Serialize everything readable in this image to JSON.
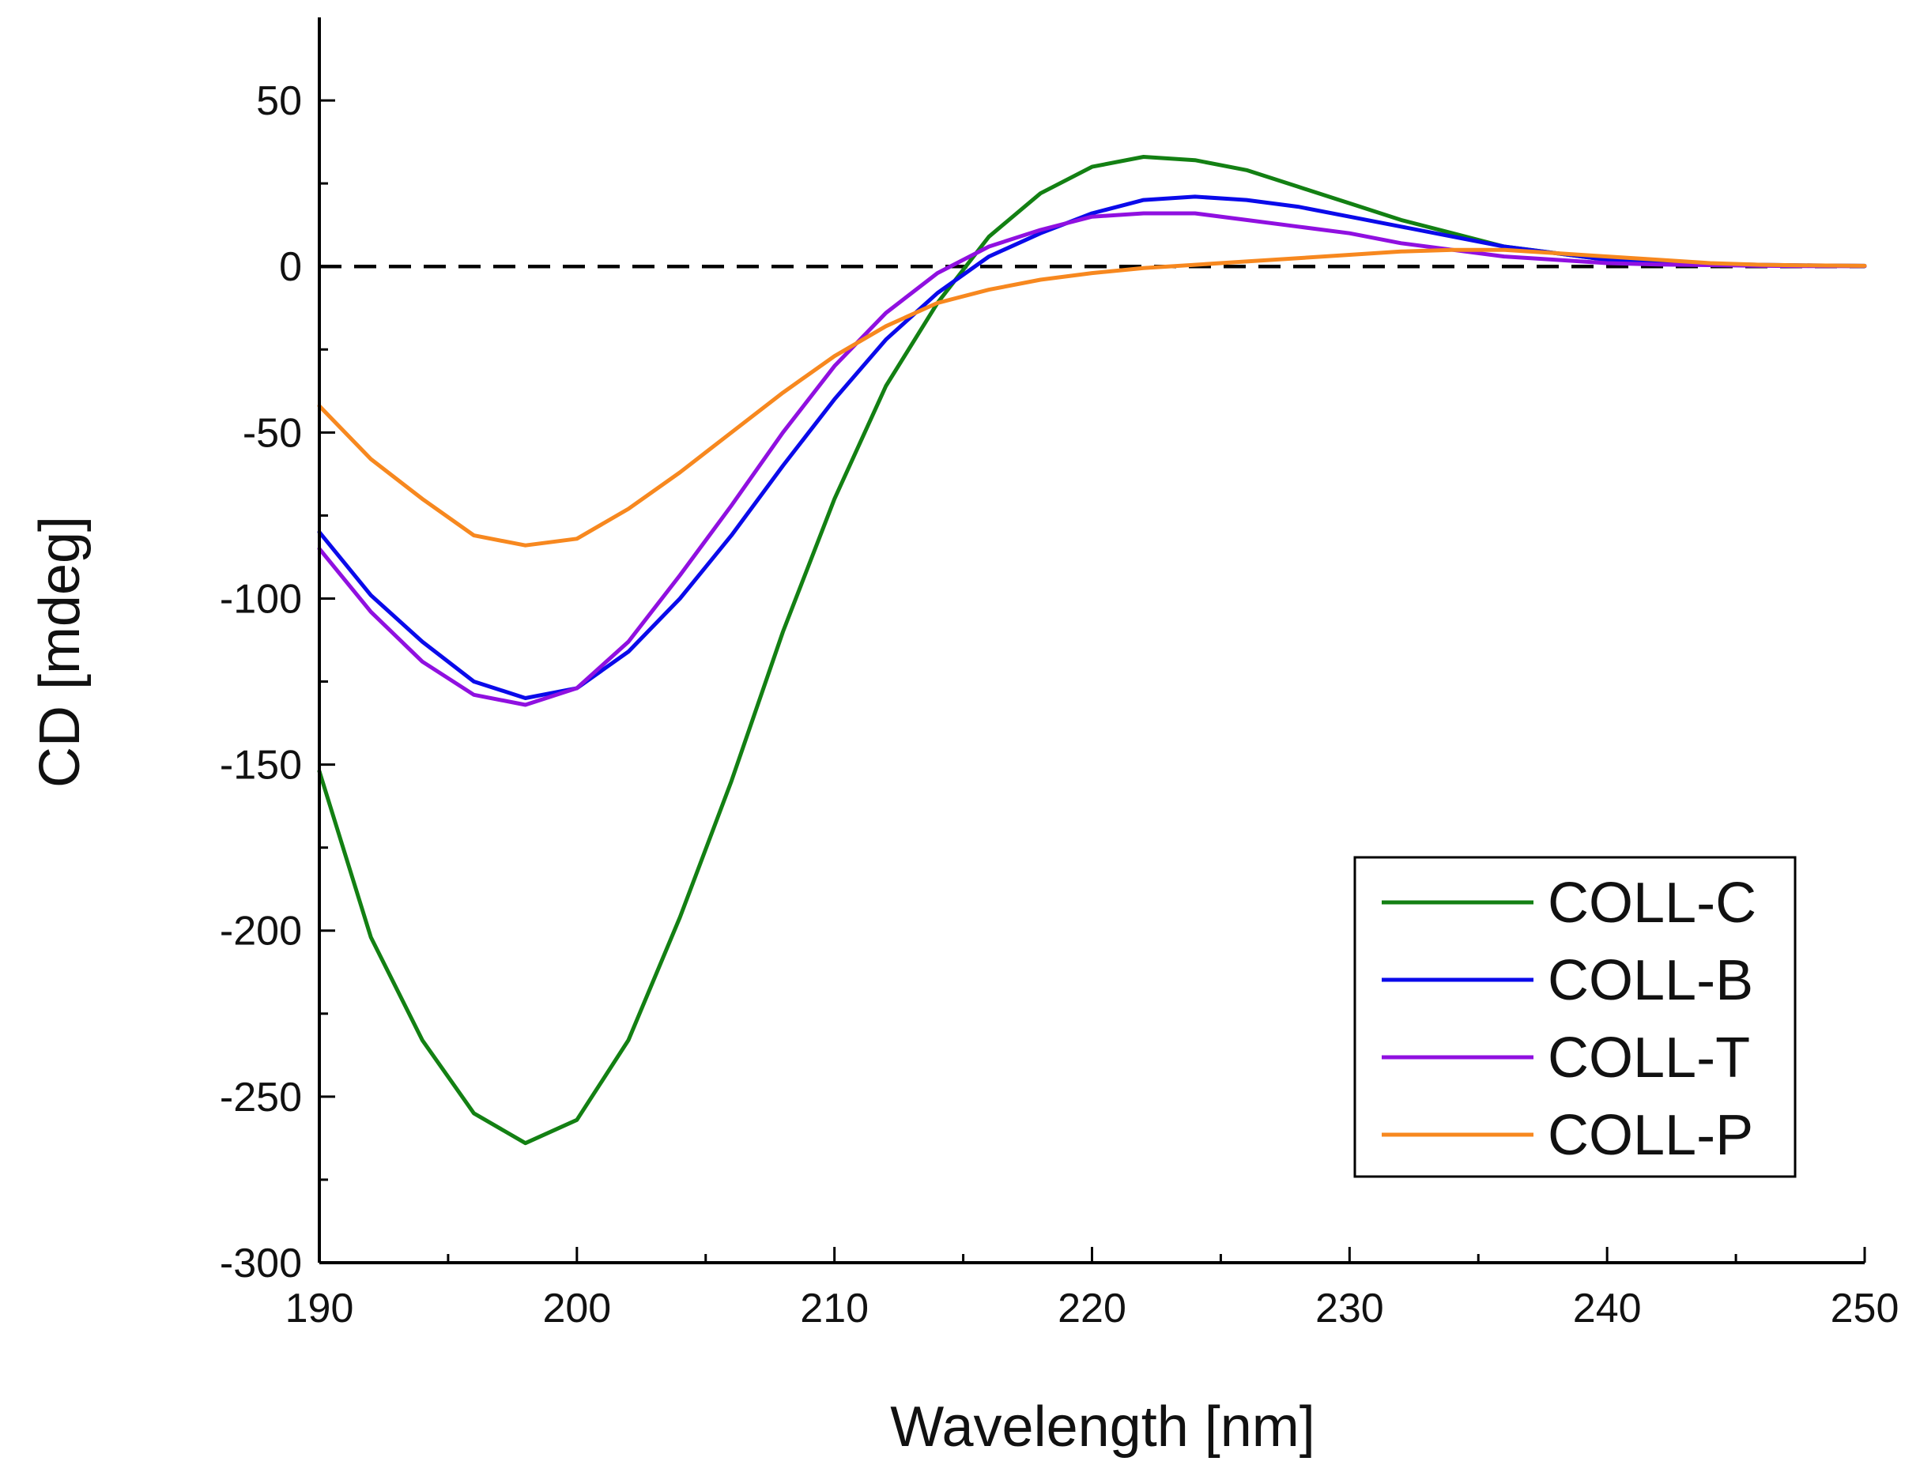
{
  "chart_data": {
    "type": "line",
    "title": "",
    "xlabel": "Wavelength [nm]",
    "ylabel": "CD [mdeg]",
    "xlim": [
      190,
      250
    ],
    "ylim": [
      -300,
      75
    ],
    "xticks": [
      190,
      200,
      210,
      220,
      230,
      240,
      250
    ],
    "xtick_labels": [
      "190",
      "200",
      "210",
      "220",
      "230",
      "240",
      "250"
    ],
    "yticks": [
      50,
      0,
      -50,
      -100,
      -150,
      -200,
      -250,
      -300
    ],
    "ytick_labels": [
      "50",
      "0",
      "-50",
      "-100",
      "-150",
      "-200",
      "-250",
      "-300"
    ],
    "x_minor_step": 5,
    "y_minor_step": 25,
    "grid": false,
    "legend_position": "bottom-right",
    "reference_line": {
      "y": 0,
      "style": "dashed",
      "color": "#000000"
    },
    "series": [
      {
        "name": "COLL-C",
        "color": "#138013",
        "x": [
          190,
          192,
          194,
          196,
          198,
          200,
          202,
          204,
          206,
          208,
          210,
          212,
          214,
          216,
          218,
          220,
          222,
          224,
          226,
          228,
          230,
          232,
          234,
          236,
          238,
          240,
          242,
          244,
          246,
          248,
          250
        ],
        "values": [
          -152,
          -202,
          -233,
          -255,
          -264,
          -257,
          -233,
          -196,
          -155,
          -110,
          -70,
          -36,
          -11,
          9,
          22,
          30,
          33,
          32,
          29,
          24,
          19,
          14,
          10,
          6,
          4,
          2,
          1,
          0.5,
          0.3,
          0.2,
          0.1
        ]
      },
      {
        "name": "COLL-B",
        "color": "#0a0aea",
        "x": [
          190,
          192,
          194,
          196,
          198,
          200,
          202,
          204,
          206,
          208,
          210,
          212,
          214,
          216,
          218,
          220,
          222,
          224,
          226,
          228,
          230,
          232,
          234,
          236,
          238,
          240,
          242,
          244,
          246,
          248,
          250
        ],
        "values": [
          -80,
          -99,
          -113,
          -125,
          -130,
          -127,
          -116,
          -100,
          -81,
          -60,
          -40,
          -22,
          -8,
          3,
          10,
          16,
          20,
          21,
          20,
          18,
          15,
          12,
          9,
          6,
          4,
          2,
          1,
          0.8,
          0.5,
          0.3,
          0.2
        ]
      },
      {
        "name": "COLL-T",
        "color": "#9010e0",
        "x": [
          190,
          192,
          194,
          196,
          198,
          200,
          202,
          204,
          206,
          208,
          210,
          212,
          214,
          216,
          218,
          220,
          222,
          224,
          226,
          228,
          230,
          232,
          234,
          236,
          238,
          240,
          242,
          244,
          246,
          248,
          250
        ],
        "values": [
          -85,
          -104,
          -119,
          -129,
          -132,
          -127,
          -113,
          -93,
          -72,
          -50,
          -30,
          -14,
          -2,
          6,
          11,
          15,
          16,
          16,
          14,
          12,
          10,
          7,
          5,
          3,
          2,
          1,
          0.6,
          0.4,
          0.2,
          0.1,
          0.1
        ]
      },
      {
        "name": "COLL-P",
        "color": "#f7881f",
        "x": [
          190,
          192,
          194,
          196,
          198,
          200,
          202,
          204,
          206,
          208,
          210,
          212,
          214,
          216,
          218,
          220,
          222,
          224,
          226,
          228,
          230,
          232,
          234,
          236,
          238,
          240,
          242,
          244,
          246,
          248,
          250
        ],
        "values": [
          -42,
          -58,
          -70,
          -81,
          -84,
          -82,
          -73,
          -62,
          -50,
          -38,
          -27,
          -18,
          -11,
          -7,
          -4,
          -2,
          -0.5,
          0.5,
          1.5,
          2.5,
          3.5,
          4.5,
          5,
          5,
          4,
          3,
          2,
          1,
          0.5,
          0.3,
          0.2
        ]
      }
    ]
  }
}
